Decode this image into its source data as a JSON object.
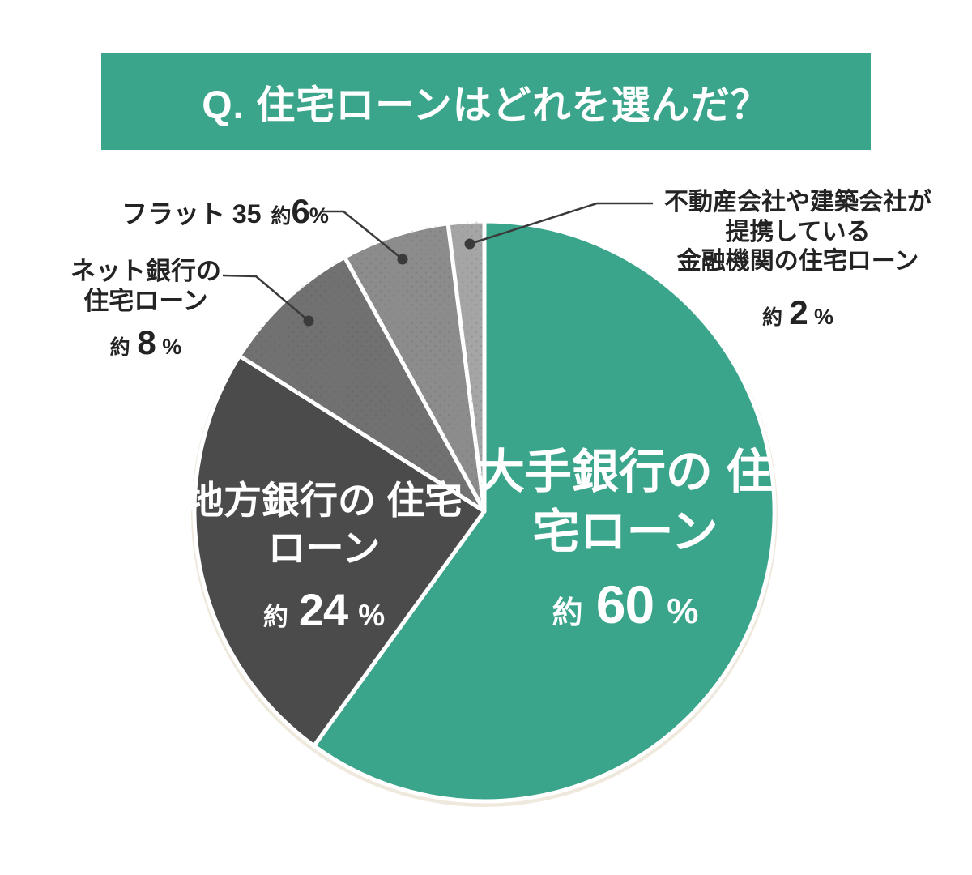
{
  "header": {
    "title": "Q. 住宅ローンはどれを選んだ？",
    "bg_color": "#3AA58B",
    "text_color": "#FFFFFF"
  },
  "chart_data": {
    "type": "pie",
    "title": "Q. 住宅ローンはどれを選んだ？",
    "direction": "clockwise",
    "start_angle_deg": 0,
    "total": 100,
    "approx_prefix": "約",
    "unit": "%",
    "leader_line_color": "#3A3A3A",
    "slice_gap_color": "#FFFFFF",
    "shadow_color": "#EFE9DD",
    "segments": [
      {
        "name": "大手銀行の住宅ローン",
        "label_lines": [
          "大手銀行の",
          "住宅ローン"
        ],
        "value": 60,
        "color": "#3AA58B",
        "label_placement": "inside",
        "textured": false
      },
      {
        "name": "地方銀行の住宅ローン",
        "label_lines": [
          "地方銀行の",
          "住宅ローン"
        ],
        "value": 24,
        "color": "#4C4B4C",
        "label_placement": "inside",
        "textured": false
      },
      {
        "name": "ネット銀行の住宅ローン",
        "label_lines": [
          "ネット銀行の",
          "住宅ローン"
        ],
        "value": 8,
        "color": "#717171",
        "label_placement": "outside",
        "textured": true
      },
      {
        "name": "フラット 35",
        "label_lines": [
          "フラット 35"
        ],
        "value": 6,
        "color": "#8C8C8C",
        "label_placement": "outside",
        "textured": true
      },
      {
        "name": "不動産会社や建築会社が提携している金融機関の住宅ローン",
        "label_lines": [
          "不動産会社や建築会社が",
          "提携している",
          "金融機関の住宅ローン"
        ],
        "value": 2,
        "color": "#A5A5A6",
        "label_placement": "outside",
        "textured": true
      }
    ]
  }
}
